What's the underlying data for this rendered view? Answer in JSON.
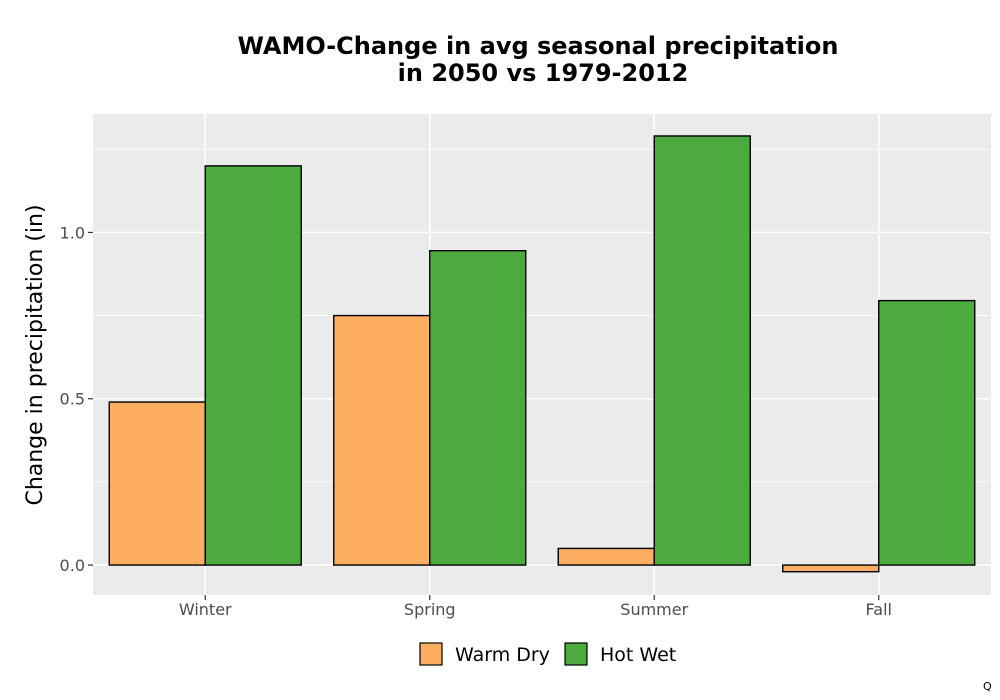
{
  "chart_data": {
    "type": "bar",
    "title_lines": [
      "WAMO-Change in avg seasonal precipitation",
      "in 2050 vs 1979-2012"
    ],
    "xlabel": "",
    "ylabel": "Change in precipitation (in)",
    "categories": [
      "Winter",
      "Spring",
      "Summer",
      "Fall"
    ],
    "series": [
      {
        "name": "Warm Dry",
        "color": "#fdae61",
        "values": [
          0.49,
          0.75,
          0.05,
          -0.02
        ]
      },
      {
        "name": "Hot Wet",
        "color": "#4daa3f",
        "values": [
          1.2,
          0.945,
          1.29,
          0.795
        ]
      }
    ],
    "ylim": [
      -0.09,
      1.356
    ],
    "yticks": [
      0.0,
      0.5,
      1.0
    ],
    "ytick_labels": [
      "0.0",
      "0.5",
      "1.0"
    ],
    "grid": true,
    "legend_position": "bottom",
    "panel_color": "#ebebeb"
  },
  "corner_mark": "Q"
}
